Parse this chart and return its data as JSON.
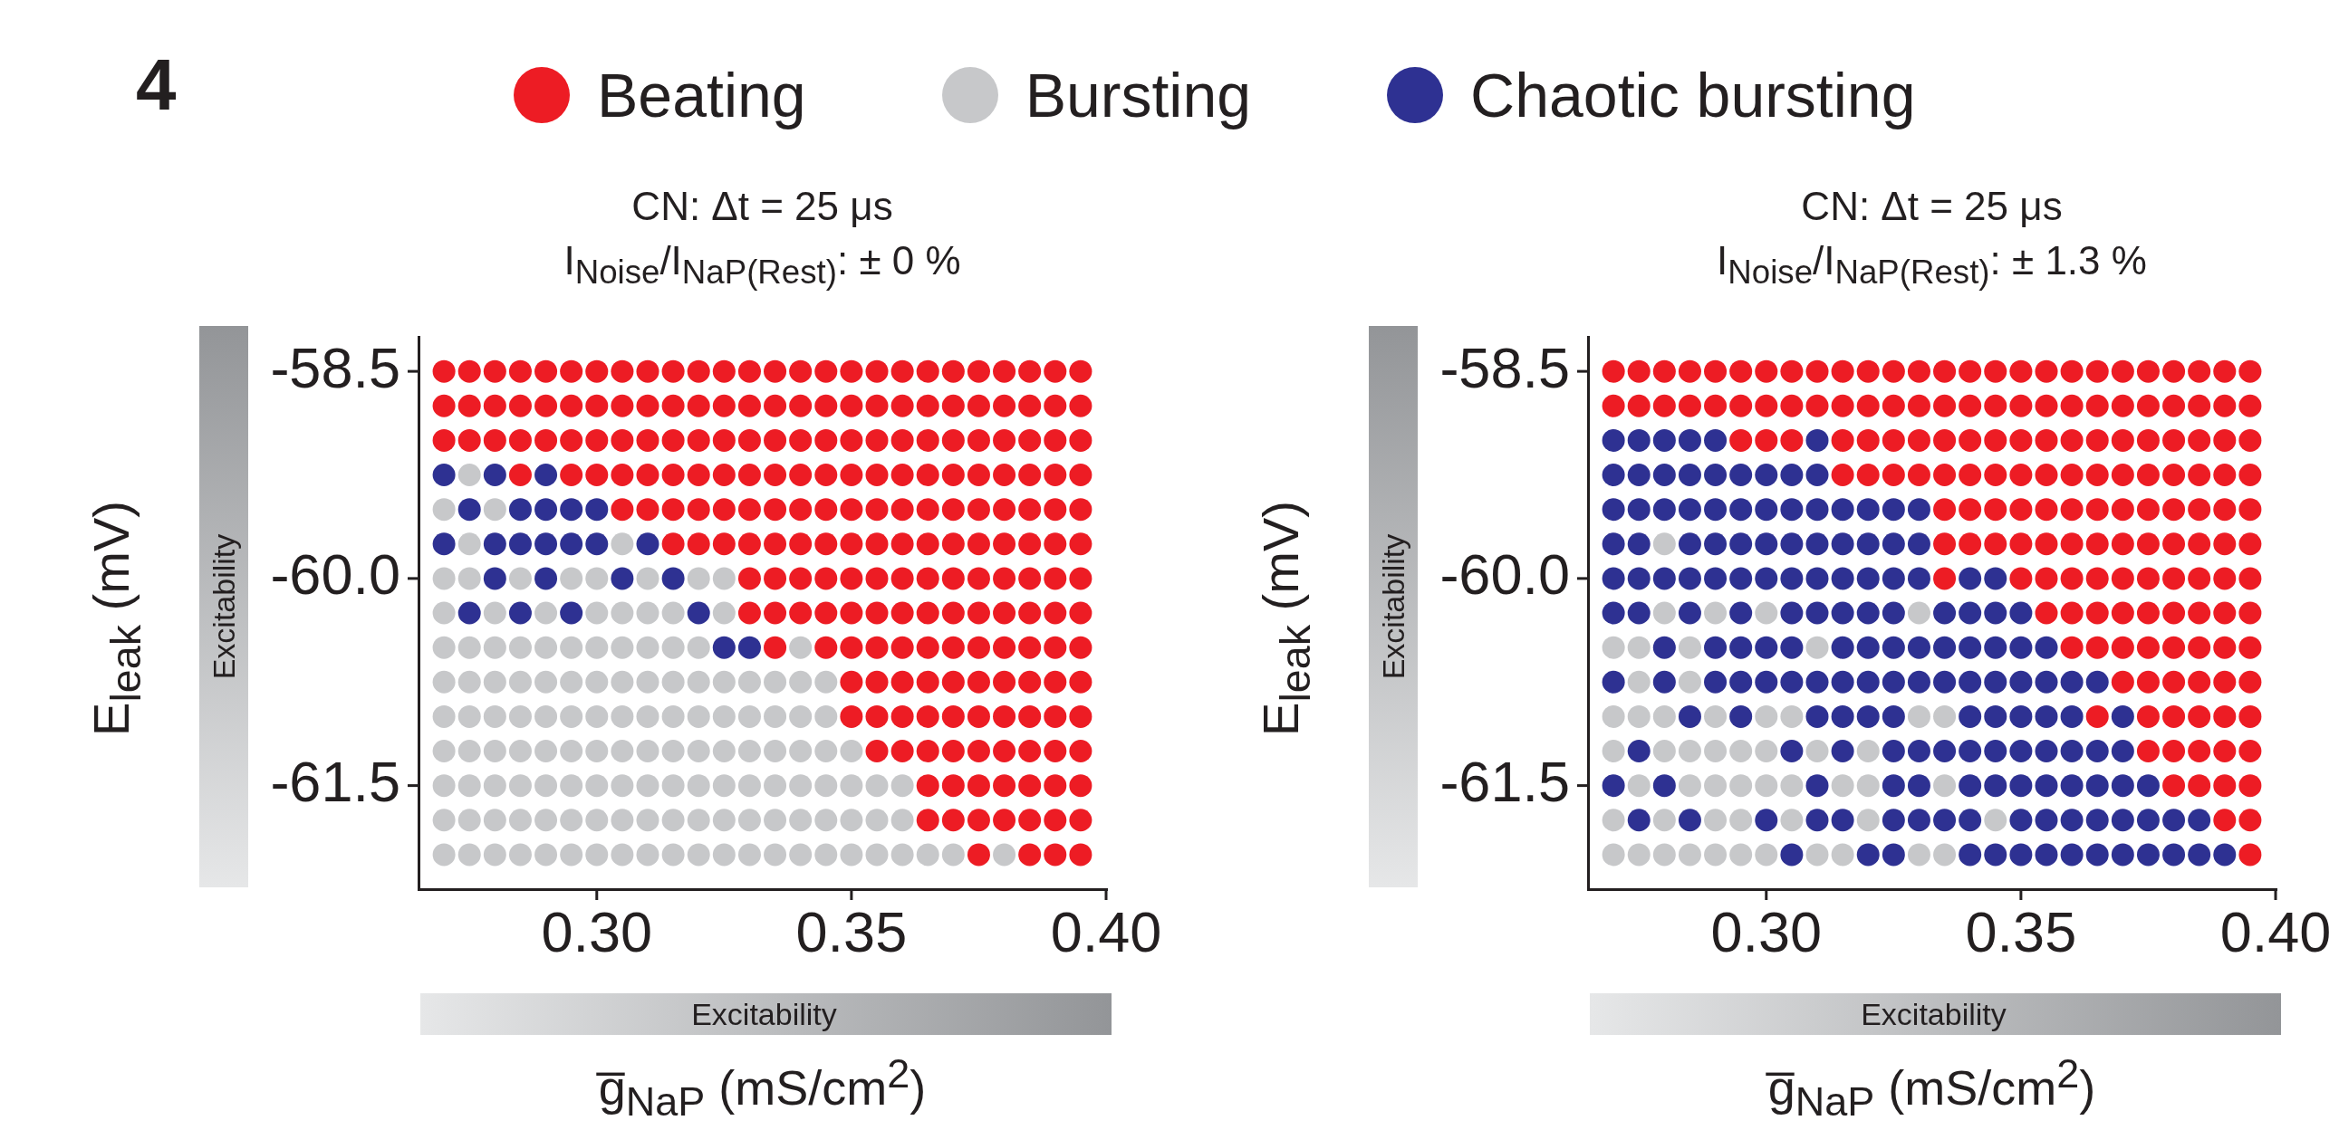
{
  "chart_data": [
    {
      "type": "scatter",
      "title": "CN: Δt = 25 μs",
      "subtitle": "I$_{Noise}$/I$_{NaP(Rest)}$:  ± 0 %",
      "xlabel": "g̅$_{NaP}$ (mS/cm$^{2}$)",
      "ylabel": "E$_{leak}$ (mV)",
      "xlim": [
        0.265,
        0.4
      ],
      "ylim": [
        -62.25,
        -58.25
      ],
      "xticks": [
        {
          "value": 0.3,
          "label": "0.30"
        },
        {
          "value": 0.35,
          "label": "0.35"
        },
        {
          "value": 0.4,
          "label": "0.40"
        }
      ],
      "yticks": [
        {
          "value": -58.5,
          "label": "-58.5"
        },
        {
          "value": -60,
          "label": "-60.0"
        },
        {
          "value": -61.5,
          "label": "-61.5"
        }
      ],
      "grid": false,
      "legend": "top",
      "marker": "circle",
      "annotations": [
        "Excitability",
        "Excitability",
        "4"
      ],
      "series": [
        {
          "name": "Beating",
          "color": "#ed1c24",
          "x": [
            0.27,
            0.275,
            0.28,
            0.285,
            0.29,
            0.295,
            0.3,
            0.305,
            0.31,
            0.315,
            0.32,
            0.325,
            0.33,
            0.335,
            0.34,
            0.345,
            0.35,
            0.355,
            0.36,
            0.365,
            0.37,
            0.375,
            0.38,
            0.385,
            0.39,
            0.395,
            0.27,
            0.275,
            0.28,
            0.285,
            0.29,
            0.295,
            0.3,
            0.305,
            0.31,
            0.315,
            0.32,
            0.325,
            0.33,
            0.335,
            0.34,
            0.345,
            0.35,
            0.355,
            0.36,
            0.365,
            0.37,
            0.375,
            0.38,
            0.385,
            0.39,
            0.395,
            0.27,
            0.275,
            0.28,
            0.285,
            0.29,
            0.295,
            0.3,
            0.305,
            0.31,
            0.315,
            0.32,
            0.325,
            0.33,
            0.335,
            0.34,
            0.345,
            0.35,
            0.355,
            0.36,
            0.365,
            0.37,
            0.375,
            0.38,
            0.385,
            0.39,
            0.395,
            0.285,
            0.295,
            0.3,
            0.305,
            0.31,
            0.315,
            0.32,
            0.325,
            0.33,
            0.335,
            0.34,
            0.345,
            0.35,
            0.355,
            0.36,
            0.365,
            0.37,
            0.375,
            0.38,
            0.385,
            0.39,
            0.395,
            0.305,
            0.31,
            0.315,
            0.32,
            0.325,
            0.33,
            0.335,
            0.34,
            0.345,
            0.35,
            0.355,
            0.36,
            0.365,
            0.37,
            0.375,
            0.38,
            0.385,
            0.39,
            0.395,
            0.315,
            0.32,
            0.325,
            0.33,
            0.335,
            0.34,
            0.345,
            0.35,
            0.355,
            0.36,
            0.365,
            0.37,
            0.375,
            0.38,
            0.385,
            0.39,
            0.395,
            0.33,
            0.335,
            0.34,
            0.345,
            0.35,
            0.355,
            0.36,
            0.365,
            0.37,
            0.375,
            0.38,
            0.385,
            0.39,
            0.395,
            0.33,
            0.335,
            0.34,
            0.345,
            0.35,
            0.355,
            0.36,
            0.365,
            0.37,
            0.375,
            0.38,
            0.385,
            0.39,
            0.395,
            0.335,
            0.345,
            0.35,
            0.355,
            0.36,
            0.365,
            0.37,
            0.375,
            0.38,
            0.385,
            0.39,
            0.395,
            0.35,
            0.355,
            0.36,
            0.365,
            0.37,
            0.375,
            0.38,
            0.385,
            0.39,
            0.395,
            0.35,
            0.355,
            0.36,
            0.365,
            0.37,
            0.375,
            0.38,
            0.385,
            0.39,
            0.395,
            0.355,
            0.36,
            0.365,
            0.37,
            0.375,
            0.38,
            0.385,
            0.39,
            0.395,
            0.365,
            0.37,
            0.375,
            0.38,
            0.385,
            0.39,
            0.395,
            0.365,
            0.37,
            0.375,
            0.38,
            0.385,
            0.39,
            0.395,
            0.375,
            0.385,
            0.39,
            0.395
          ],
          "values": [
            -58.5,
            -58.5,
            -58.5,
            -58.5,
            -58.5,
            -58.5,
            -58.5,
            -58.5,
            -58.5,
            -58.5,
            -58.5,
            -58.5,
            -58.5,
            -58.5,
            -58.5,
            -58.5,
            -58.5,
            -58.5,
            -58.5,
            -58.5,
            -58.5,
            -58.5,
            -58.5,
            -58.5,
            -58.5,
            -58.5,
            -58.75,
            -58.75,
            -58.75,
            -58.75,
            -58.75,
            -58.75,
            -58.75,
            -58.75,
            -58.75,
            -58.75,
            -58.75,
            -58.75,
            -58.75,
            -58.75,
            -58.75,
            -58.75,
            -58.75,
            -58.75,
            -58.75,
            -58.75,
            -58.75,
            -58.75,
            -58.75,
            -58.75,
            -58.75,
            -58.75,
            -59,
            -59,
            -59,
            -59,
            -59,
            -59,
            -59,
            -59,
            -59,
            -59,
            -59,
            -59,
            -59,
            -59,
            -59,
            -59,
            -59,
            -59,
            -59,
            -59,
            -59,
            -59,
            -59,
            -59,
            -59,
            -59,
            -59.25,
            -59.25,
            -59.25,
            -59.25,
            -59.25,
            -59.25,
            -59.25,
            -59.25,
            -59.25,
            -59.25,
            -59.25,
            -59.25,
            -59.25,
            -59.25,
            -59.25,
            -59.25,
            -59.25,
            -59.25,
            -59.25,
            -59.25,
            -59.25,
            -59.25,
            -59.5,
            -59.5,
            -59.5,
            -59.5,
            -59.5,
            -59.5,
            -59.5,
            -59.5,
            -59.5,
            -59.5,
            -59.5,
            -59.5,
            -59.5,
            -59.5,
            -59.5,
            -59.5,
            -59.5,
            -59.5,
            -59.5,
            -59.75,
            -59.75,
            -59.75,
            -59.75,
            -59.75,
            -59.75,
            -59.75,
            -59.75,
            -59.75,
            -59.75,
            -59.75,
            -59.75,
            -59.75,
            -59.75,
            -59.75,
            -59.75,
            -59.75,
            -60,
            -60,
            -60,
            -60,
            -60,
            -60,
            -60,
            -60,
            -60,
            -60,
            -60,
            -60,
            -60,
            -60,
            -60.25,
            -60.25,
            -60.25,
            -60.25,
            -60.25,
            -60.25,
            -60.25,
            -60.25,
            -60.25,
            -60.25,
            -60.25,
            -60.25,
            -60.25,
            -60.25,
            -60.5,
            -60.5,
            -60.5,
            -60.5,
            -60.5,
            -60.5,
            -60.5,
            -60.5,
            -60.5,
            -60.5,
            -60.5,
            -60.5,
            -60.75,
            -60.75,
            -60.75,
            -60.75,
            -60.75,
            -60.75,
            -60.75,
            -60.75,
            -60.75,
            -60.75,
            -61,
            -61,
            -61,
            -61,
            -61,
            -61,
            -61,
            -61,
            -61,
            -61,
            -61.25,
            -61.25,
            -61.25,
            -61.25,
            -61.25,
            -61.25,
            -61.25,
            -61.25,
            -61.25,
            -61.5,
            -61.5,
            -61.5,
            -61.5,
            -61.5,
            -61.5,
            -61.5,
            -61.75,
            -61.75,
            -61.75,
            -61.75,
            -61.75,
            -61.75,
            -61.75,
            -62,
            -62,
            -62,
            -62
          ]
        },
        {
          "name": "Bursting",
          "color": "#c7c8ca",
          "x": [
            0.275,
            0.27,
            0.28,
            0.275,
            0.305,
            0.27,
            0.275,
            0.285,
            0.295,
            0.3,
            0.31,
            0.32,
            0.325,
            0.27,
            0.28,
            0.29,
            0.3,
            0.305,
            0.31,
            0.315,
            0.325,
            0.27,
            0.275,
            0.28,
            0.285,
            0.29,
            0.295,
            0.3,
            0.305,
            0.31,
            0.315,
            0.32,
            0.34,
            0.27,
            0.275,
            0.28,
            0.285,
            0.29,
            0.295,
            0.3,
            0.305,
            0.31,
            0.315,
            0.32,
            0.325,
            0.33,
            0.335,
            0.34,
            0.345,
            0.27,
            0.275,
            0.28,
            0.285,
            0.29,
            0.295,
            0.3,
            0.305,
            0.31,
            0.315,
            0.32,
            0.325,
            0.33,
            0.335,
            0.34,
            0.345,
            0.27,
            0.275,
            0.28,
            0.285,
            0.29,
            0.295,
            0.3,
            0.305,
            0.31,
            0.315,
            0.32,
            0.325,
            0.33,
            0.335,
            0.34,
            0.345,
            0.35,
            0.27,
            0.275,
            0.28,
            0.285,
            0.29,
            0.295,
            0.3,
            0.305,
            0.31,
            0.315,
            0.32,
            0.325,
            0.33,
            0.335,
            0.34,
            0.345,
            0.35,
            0.355,
            0.36,
            0.27,
            0.275,
            0.28,
            0.285,
            0.29,
            0.295,
            0.3,
            0.305,
            0.31,
            0.315,
            0.32,
            0.325,
            0.33,
            0.335,
            0.34,
            0.345,
            0.35,
            0.355,
            0.36,
            0.27,
            0.275,
            0.28,
            0.285,
            0.29,
            0.295,
            0.3,
            0.305,
            0.31,
            0.315,
            0.32,
            0.325,
            0.33,
            0.335,
            0.34,
            0.345,
            0.35,
            0.355,
            0.36,
            0.365,
            0.37,
            0.38
          ],
          "values": [
            -59.25,
            -59.5,
            -59.5,
            -59.75,
            -59.75,
            -60,
            -60,
            -60,
            -60,
            -60,
            -60,
            -60,
            -60,
            -60.25,
            -60.25,
            -60.25,
            -60.25,
            -60.25,
            -60.25,
            -60.25,
            -60.25,
            -60.5,
            -60.5,
            -60.5,
            -60.5,
            -60.5,
            -60.5,
            -60.5,
            -60.5,
            -60.5,
            -60.5,
            -60.5,
            -60.5,
            -60.75,
            -60.75,
            -60.75,
            -60.75,
            -60.75,
            -60.75,
            -60.75,
            -60.75,
            -60.75,
            -60.75,
            -60.75,
            -60.75,
            -60.75,
            -60.75,
            -60.75,
            -60.75,
            -61,
            -61,
            -61,
            -61,
            -61,
            -61,
            -61,
            -61,
            -61,
            -61,
            -61,
            -61,
            -61,
            -61,
            -61,
            -61,
            -61.25,
            -61.25,
            -61.25,
            -61.25,
            -61.25,
            -61.25,
            -61.25,
            -61.25,
            -61.25,
            -61.25,
            -61.25,
            -61.25,
            -61.25,
            -61.25,
            -61.25,
            -61.25,
            -61.25,
            -61.5,
            -61.5,
            -61.5,
            -61.5,
            -61.5,
            -61.5,
            -61.5,
            -61.5,
            -61.5,
            -61.5,
            -61.5,
            -61.5,
            -61.5,
            -61.5,
            -61.5,
            -61.5,
            -61.5,
            -61.5,
            -61.5,
            -61.75,
            -61.75,
            -61.75,
            -61.75,
            -61.75,
            -61.75,
            -61.75,
            -61.75,
            -61.75,
            -61.75,
            -61.75,
            -61.75,
            -61.75,
            -61.75,
            -61.75,
            -61.75,
            -61.75,
            -61.75,
            -61.75,
            -62,
            -62,
            -62,
            -62,
            -62,
            -62,
            -62,
            -62,
            -62,
            -62,
            -62,
            -62,
            -62,
            -62,
            -62,
            -62,
            -62,
            -62,
            -62,
            -62,
            -62,
            -62
          ]
        },
        {
          "name": "Chaotic bursting",
          "color": "#2e3192",
          "x": [
            0.27,
            0.28,
            0.29,
            0.275,
            0.285,
            0.29,
            0.295,
            0.3,
            0.27,
            0.28,
            0.285,
            0.29,
            0.295,
            0.3,
            0.31,
            0.28,
            0.29,
            0.305,
            0.315,
            0.275,
            0.285,
            0.295,
            0.32,
            0.325,
            0.33
          ],
          "values": [
            -59.25,
            -59.25,
            -59.25,
            -59.5,
            -59.5,
            -59.5,
            -59.5,
            -59.5,
            -59.75,
            -59.75,
            -59.75,
            -59.75,
            -59.75,
            -59.75,
            -59.75,
            -60,
            -60,
            -60,
            -60,
            -60.25,
            -60.25,
            -60.25,
            -60.25,
            -60.5,
            -60.5
          ]
        }
      ]
    },
    {
      "type": "scatter",
      "title": "CN: Δt = 25 μs",
      "subtitle": "I$_{Noise}$/I$_{NaP(Rest)}$:  ± 1.3 %",
      "xlabel": "g̅$_{NaP}$ (mS/cm$^{2}$)",
      "ylabel": "E$_{leak}$ (mV)",
      "xlim": [
        0.265,
        0.4
      ],
      "ylim": [
        -62.25,
        -58.25
      ],
      "xticks": [
        {
          "value": 0.3,
          "label": "0.30"
        },
        {
          "value": 0.35,
          "label": "0.35"
        },
        {
          "value": 0.4,
          "label": "0.40"
        }
      ],
      "yticks": [
        {
          "value": -58.5,
          "label": "-58.5"
        },
        {
          "value": -60,
          "label": "-60.0"
        },
        {
          "value": -61.5,
          "label": "-61.5"
        }
      ],
      "grid": false,
      "marker": "circle",
      "annotations": [
        "Excitability",
        "Excitability"
      ],
      "series": [
        {
          "color": "#ed1c24",
          "x": [
            0.27,
            0.275,
            0.28,
            0.285,
            0.29,
            0.295,
            0.3,
            0.305,
            0.31,
            0.315,
            0.32,
            0.325,
            0.33,
            0.335,
            0.34,
            0.345,
            0.35,
            0.355,
            0.36,
            0.365,
            0.37,
            0.375,
            0.38,
            0.385,
            0.39,
            0.395,
            0.27,
            0.275,
            0.28,
            0.285,
            0.29,
            0.295,
            0.3,
            0.305,
            0.31,
            0.315,
            0.32,
            0.325,
            0.33,
            0.335,
            0.34,
            0.345,
            0.35,
            0.355,
            0.36,
            0.365,
            0.37,
            0.375,
            0.38,
            0.385,
            0.39,
            0.395,
            0.295,
            0.3,
            0.305,
            0.315,
            0.32,
            0.325,
            0.33,
            0.335,
            0.34,
            0.345,
            0.35,
            0.355,
            0.36,
            0.365,
            0.37,
            0.375,
            0.38,
            0.385,
            0.39,
            0.395,
            0.315,
            0.32,
            0.325,
            0.33,
            0.335,
            0.34,
            0.345,
            0.35,
            0.355,
            0.36,
            0.365,
            0.37,
            0.375,
            0.38,
            0.385,
            0.39,
            0.395,
            0.335,
            0.34,
            0.345,
            0.35,
            0.355,
            0.36,
            0.365,
            0.37,
            0.375,
            0.38,
            0.385,
            0.39,
            0.395,
            0.335,
            0.34,
            0.345,
            0.35,
            0.355,
            0.36,
            0.365,
            0.37,
            0.375,
            0.38,
            0.385,
            0.39,
            0.395,
            0.335,
            0.35,
            0.355,
            0.36,
            0.365,
            0.37,
            0.375,
            0.38,
            0.385,
            0.39,
            0.395,
            0.355,
            0.36,
            0.365,
            0.37,
            0.375,
            0.38,
            0.385,
            0.39,
            0.395,
            0.36,
            0.365,
            0.37,
            0.375,
            0.38,
            0.385,
            0.39,
            0.395,
            0.37,
            0.375,
            0.38,
            0.385,
            0.39,
            0.395,
            0.365,
            0.375,
            0.38,
            0.385,
            0.39,
            0.395,
            0.375,
            0.38,
            0.385,
            0.39,
            0.395,
            0.38,
            0.385,
            0.39,
            0.395,
            0.39,
            0.395,
            0.395
          ],
          "values": [
            -58.5,
            -58.5,
            -58.5,
            -58.5,
            -58.5,
            -58.5,
            -58.5,
            -58.5,
            -58.5,
            -58.5,
            -58.5,
            -58.5,
            -58.5,
            -58.5,
            -58.5,
            -58.5,
            -58.5,
            -58.5,
            -58.5,
            -58.5,
            -58.5,
            -58.5,
            -58.5,
            -58.5,
            -58.5,
            -58.5,
            -58.75,
            -58.75,
            -58.75,
            -58.75,
            -58.75,
            -58.75,
            -58.75,
            -58.75,
            -58.75,
            -58.75,
            -58.75,
            -58.75,
            -58.75,
            -58.75,
            -58.75,
            -58.75,
            -58.75,
            -58.75,
            -58.75,
            -58.75,
            -58.75,
            -58.75,
            -58.75,
            -58.75,
            -58.75,
            -58.75,
            -59,
            -59,
            -59,
            -59,
            -59,
            -59,
            -59,
            -59,
            -59,
            -59,
            -59,
            -59,
            -59,
            -59,
            -59,
            -59,
            -59,
            -59,
            -59,
            -59,
            -59.25,
            -59.25,
            -59.25,
            -59.25,
            -59.25,
            -59.25,
            -59.25,
            -59.25,
            -59.25,
            -59.25,
            -59.25,
            -59.25,
            -59.25,
            -59.25,
            -59.25,
            -59.25,
            -59.25,
            -59.5,
            -59.5,
            -59.5,
            -59.5,
            -59.5,
            -59.5,
            -59.5,
            -59.5,
            -59.5,
            -59.5,
            -59.5,
            -59.5,
            -59.5,
            -59.75,
            -59.75,
            -59.75,
            -59.75,
            -59.75,
            -59.75,
            -59.75,
            -59.75,
            -59.75,
            -59.75,
            -59.75,
            -59.75,
            -59.75,
            -60,
            -60,
            -60,
            -60,
            -60,
            -60,
            -60,
            -60,
            -60,
            -60,
            -60,
            -60.25,
            -60.25,
            -60.25,
            -60.25,
            -60.25,
            -60.25,
            -60.25,
            -60.25,
            -60.25,
            -60.5,
            -60.5,
            -60.5,
            -60.5,
            -60.5,
            -60.5,
            -60.5,
            -60.5,
            -60.75,
            -60.75,
            -60.75,
            -60.75,
            -60.75,
            -60.75,
            -61,
            -61,
            -61,
            -61,
            -61,
            -61,
            -61.25,
            -61.25,
            -61.25,
            -61.25,
            -61.25,
            -61.5,
            -61.5,
            -61.5,
            -61.5,
            -61.75,
            -61.75,
            -62
          ]
        },
        {
          "color": "#c7c8ca",
          "x": [
            0.28,
            0.28,
            0.29,
            0.3,
            0.33,
            0.27,
            0.275,
            0.285,
            0.31,
            0.275,
            0.285,
            0.27,
            0.275,
            0.28,
            0.29,
            0.3,
            0.305,
            0.33,
            0.335,
            0.27,
            0.28,
            0.285,
            0.29,
            0.295,
            0.3,
            0.31,
            0.32,
            0.275,
            0.285,
            0.29,
            0.295,
            0.3,
            0.305,
            0.315,
            0.32,
            0.335,
            0.27,
            0.28,
            0.29,
            0.295,
            0.305,
            0.32,
            0.345,
            0.27,
            0.275,
            0.28,
            0.285,
            0.29,
            0.295,
            0.3,
            0.31,
            0.315,
            0.33,
            0.335
          ],
          "values": [
            -59.75,
            -60.25,
            -60.25,
            -60.25,
            -60.25,
            -60.5,
            -60.5,
            -60.5,
            -60.5,
            -60.75,
            -60.75,
            -61,
            -61,
            -61,
            -61,
            -61,
            -61,
            -61,
            -61,
            -61.25,
            -61.25,
            -61.25,
            -61.25,
            -61.25,
            -61.25,
            -61.25,
            -61.25,
            -61.5,
            -61.5,
            -61.5,
            -61.5,
            -61.5,
            -61.5,
            -61.5,
            -61.5,
            -61.5,
            -61.75,
            -61.75,
            -61.75,
            -61.75,
            -61.75,
            -61.75,
            -61.75,
            -62,
            -62,
            -62,
            -62,
            -62,
            -62,
            -62,
            -62,
            -62,
            -62,
            -62
          ]
        },
        {
          "color": "#2e3192",
          "x": [
            0.27,
            0.275,
            0.28,
            0.285,
            0.29,
            0.31,
            0.27,
            0.275,
            0.28,
            0.285,
            0.29,
            0.295,
            0.3,
            0.305,
            0.31,
            0.27,
            0.275,
            0.28,
            0.285,
            0.29,
            0.295,
            0.3,
            0.305,
            0.31,
            0.315,
            0.32,
            0.325,
            0.33,
            0.27,
            0.275,
            0.285,
            0.29,
            0.295,
            0.3,
            0.305,
            0.31,
            0.315,
            0.32,
            0.325,
            0.33,
            0.27,
            0.275,
            0.28,
            0.285,
            0.29,
            0.295,
            0.3,
            0.305,
            0.31,
            0.315,
            0.32,
            0.325,
            0.33,
            0.34,
            0.345,
            0.27,
            0.275,
            0.285,
            0.295,
            0.305,
            0.31,
            0.315,
            0.32,
            0.325,
            0.335,
            0.34,
            0.345,
            0.35,
            0.28,
            0.29,
            0.295,
            0.3,
            0.305,
            0.315,
            0.32,
            0.325,
            0.33,
            0.335,
            0.34,
            0.345,
            0.35,
            0.355,
            0.27,
            0.28,
            0.29,
            0.295,
            0.3,
            0.305,
            0.31,
            0.315,
            0.32,
            0.325,
            0.33,
            0.335,
            0.34,
            0.345,
            0.35,
            0.355,
            0.36,
            0.365,
            0.285,
            0.295,
            0.31,
            0.315,
            0.32,
            0.325,
            0.34,
            0.345,
            0.35,
            0.355,
            0.36,
            0.37,
            0.275,
            0.305,
            0.315,
            0.325,
            0.33,
            0.335,
            0.34,
            0.345,
            0.35,
            0.355,
            0.36,
            0.365,
            0.37,
            0.27,
            0.28,
            0.31,
            0.325,
            0.33,
            0.34,
            0.345,
            0.35,
            0.355,
            0.36,
            0.365,
            0.37,
            0.375,
            0.275,
            0.285,
            0.3,
            0.31,
            0.315,
            0.325,
            0.33,
            0.335,
            0.34,
            0.35,
            0.355,
            0.36,
            0.365,
            0.37,
            0.375,
            0.38,
            0.385,
            0.305,
            0.32,
            0.325,
            0.34,
            0.345,
            0.35,
            0.355,
            0.36,
            0.365,
            0.37,
            0.375,
            0.38,
            0.385,
            0.39
          ],
          "values": [
            -59,
            -59,
            -59,
            -59,
            -59,
            -59,
            -59.25,
            -59.25,
            -59.25,
            -59.25,
            -59.25,
            -59.25,
            -59.25,
            -59.25,
            -59.25,
            -59.5,
            -59.5,
            -59.5,
            -59.5,
            -59.5,
            -59.5,
            -59.5,
            -59.5,
            -59.5,
            -59.5,
            -59.5,
            -59.5,
            -59.5,
            -59.75,
            -59.75,
            -59.75,
            -59.75,
            -59.75,
            -59.75,
            -59.75,
            -59.75,
            -59.75,
            -59.75,
            -59.75,
            -59.75,
            -60,
            -60,
            -60,
            -60,
            -60,
            -60,
            -60,
            -60,
            -60,
            -60,
            -60,
            -60,
            -60,
            -60,
            -60,
            -60.25,
            -60.25,
            -60.25,
            -60.25,
            -60.25,
            -60.25,
            -60.25,
            -60.25,
            -60.25,
            -60.25,
            -60.25,
            -60.25,
            -60.25,
            -60.5,
            -60.5,
            -60.5,
            -60.5,
            -60.5,
            -60.5,
            -60.5,
            -60.5,
            -60.5,
            -60.5,
            -60.5,
            -60.5,
            -60.5,
            -60.5,
            -60.75,
            -60.75,
            -60.75,
            -60.75,
            -60.75,
            -60.75,
            -60.75,
            -60.75,
            -60.75,
            -60.75,
            -60.75,
            -60.75,
            -60.75,
            -60.75,
            -60.75,
            -60.75,
            -60.75,
            -60.75,
            -61,
            -61,
            -61,
            -61,
            -61,
            -61,
            -61,
            -61,
            -61,
            -61,
            -61,
            -61,
            -61.25,
            -61.25,
            -61.25,
            -61.25,
            -61.25,
            -61.25,
            -61.25,
            -61.25,
            -61.25,
            -61.25,
            -61.25,
            -61.25,
            -61.25,
            -61.5,
            -61.5,
            -61.5,
            -61.5,
            -61.5,
            -61.5,
            -61.5,
            -61.5,
            -61.5,
            -61.5,
            -61.5,
            -61.5,
            -61.5,
            -61.75,
            -61.75,
            -61.75,
            -61.75,
            -61.75,
            -61.75,
            -61.75,
            -61.75,
            -61.75,
            -61.75,
            -61.75,
            -61.75,
            -61.75,
            -61.75,
            -61.75,
            -61.75,
            -61.75,
            -62,
            -62,
            -62,
            -62,
            -62,
            -62,
            -62,
            -62,
            -62,
            -62,
            -62,
            -62,
            -62,
            -62
          ]
        }
      ]
    }
  ]
}
